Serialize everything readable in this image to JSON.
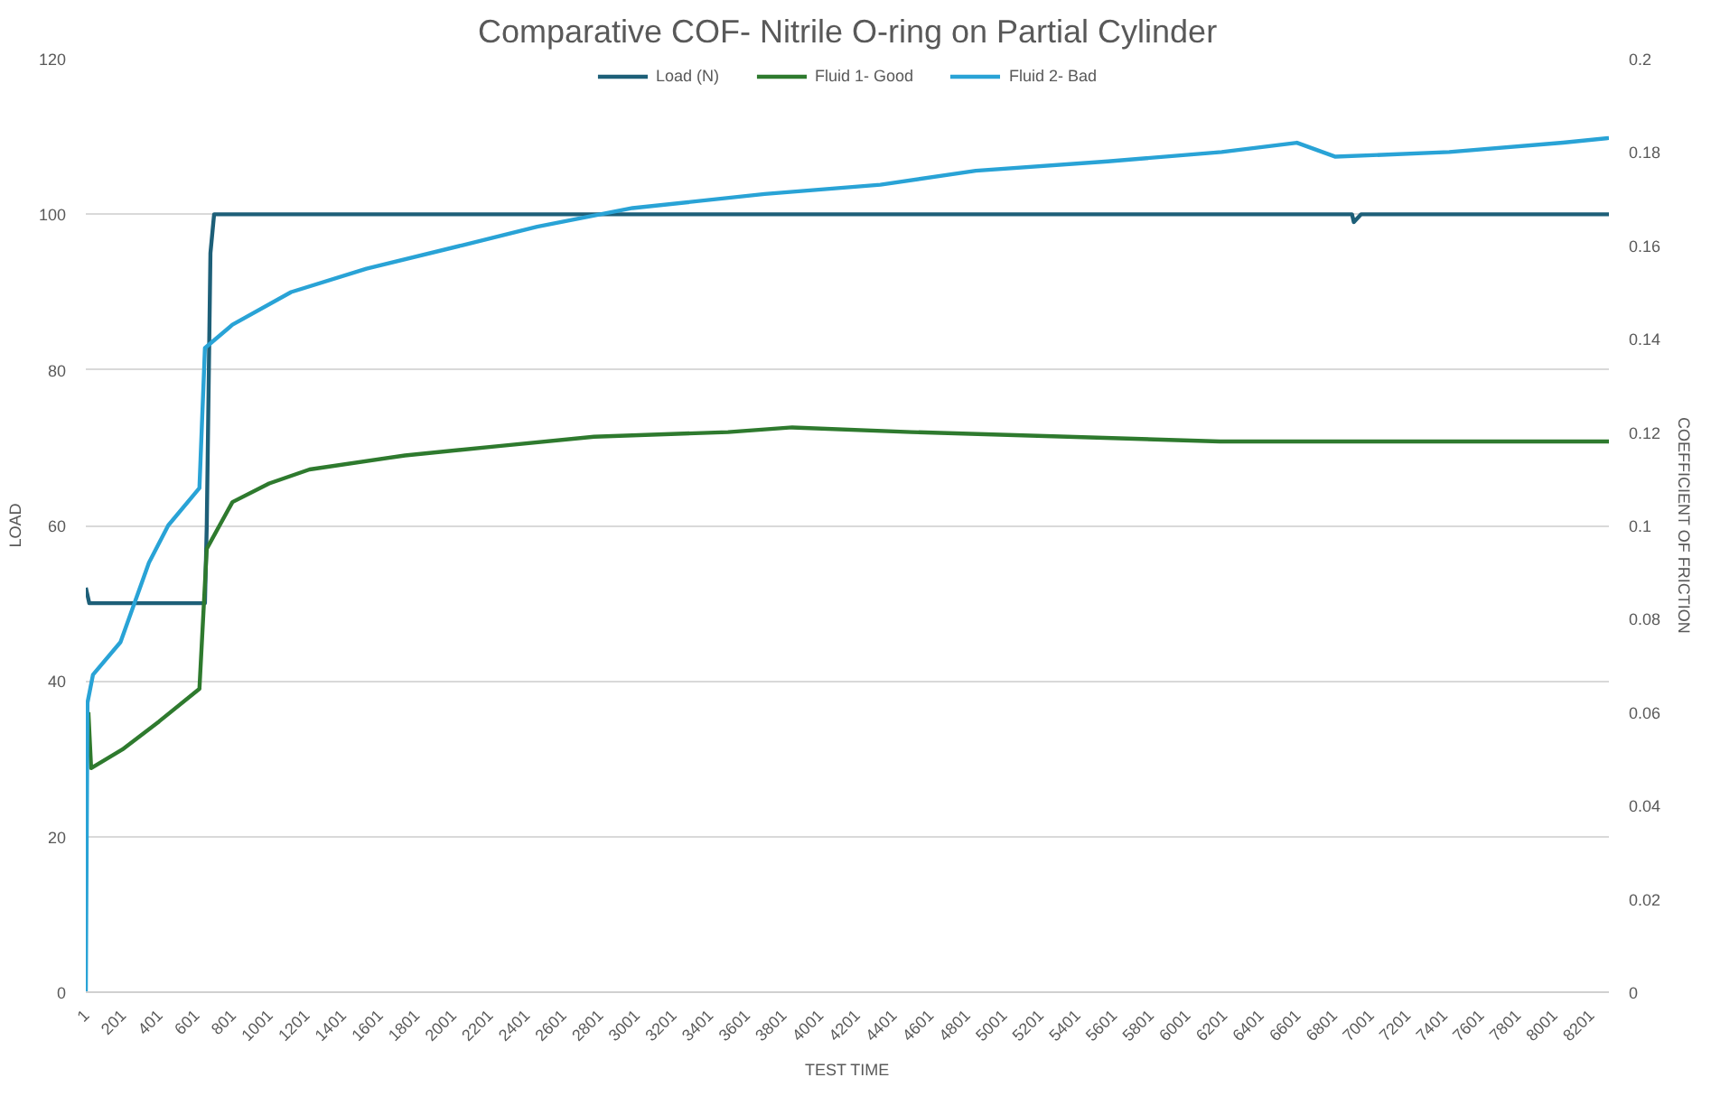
{
  "chart_data": {
    "type": "line",
    "title": "Comparative COF- Nitrile O-ring on Partial Cylinder",
    "xlabel": "TEST TIME",
    "ylabel": "LOAD",
    "y2label": "COEFFICIENT OF FRICTION",
    "xlim": [
      1,
      8300
    ],
    "xticks": [
      1,
      201,
      401,
      601,
      801,
      1001,
      1201,
      1401,
      1601,
      1801,
      2001,
      2201,
      2401,
      2601,
      2801,
      3001,
      3201,
      3401,
      3601,
      3801,
      4001,
      4201,
      4401,
      4601,
      4801,
      5001,
      5201,
      5401,
      5601,
      5801,
      6001,
      6201,
      6401,
      6601,
      6801,
      7001,
      7201,
      7401,
      7601,
      7801,
      8001,
      8201
    ],
    "ylim": [
      0,
      120
    ],
    "yticks": [
      0,
      20,
      40,
      60,
      80,
      100,
      120
    ],
    "y2lim": [
      0,
      0.2
    ],
    "y2ticks": [
      0,
      0.02,
      0.04,
      0.06,
      0.08,
      0.1,
      0.12,
      0.14,
      0.16,
      0.18,
      0.2
    ],
    "grid": "y",
    "legend": "top",
    "line_style": "solid",
    "series": [
      {
        "name": "Load (N)",
        "color": "#1d5f78",
        "x": [
          1,
          20,
          650,
          660,
          680,
          700,
          6900,
          6910,
          6950,
          8300
        ],
        "values": [
          52,
          50,
          50,
          60,
          95,
          100,
          100,
          99,
          100,
          100
        ]
      },
      {
        "name": "Fluid 1- Good",
        "color": "#2e7a2e",
        "axis": "y2",
        "x": [
          15,
          30,
          200,
          400,
          620,
          640,
          660,
          800,
          1000,
          1220,
          1740,
          2250,
          2770,
          3500,
          3850,
          4500,
          5350,
          6180,
          7000,
          8300
        ],
        "values": [
          0.06,
          0.048,
          0.052,
          0.058,
          0.065,
          0.08,
          0.095,
          0.105,
          0.109,
          0.112,
          0.115,
          0.117,
          0.119,
          0.12,
          0.121,
          0.12,
          0.119,
          0.118,
          0.118,
          0.118
        ]
      },
      {
        "name": "Fluid 2- Bad",
        "color": "#29a3d6",
        "axis": "y2",
        "x": [
          1,
          10,
          40,
          190,
          345,
          450,
          620,
          650,
          800,
          1120,
          1530,
          2050,
          2460,
          2980,
          3700,
          4330,
          4850,
          5570,
          6190,
          6600,
          6810,
          7430,
          8050,
          8300
        ],
        "values": [
          0,
          0.062,
          0.068,
          0.075,
          0.092,
          0.1,
          0.108,
          0.138,
          0.143,
          0.15,
          0.155,
          0.16,
          0.164,
          0.168,
          0.171,
          0.173,
          0.176,
          0.178,
          0.18,
          0.182,
          0.179,
          0.18,
          0.182,
          0.183
        ]
      }
    ]
  }
}
